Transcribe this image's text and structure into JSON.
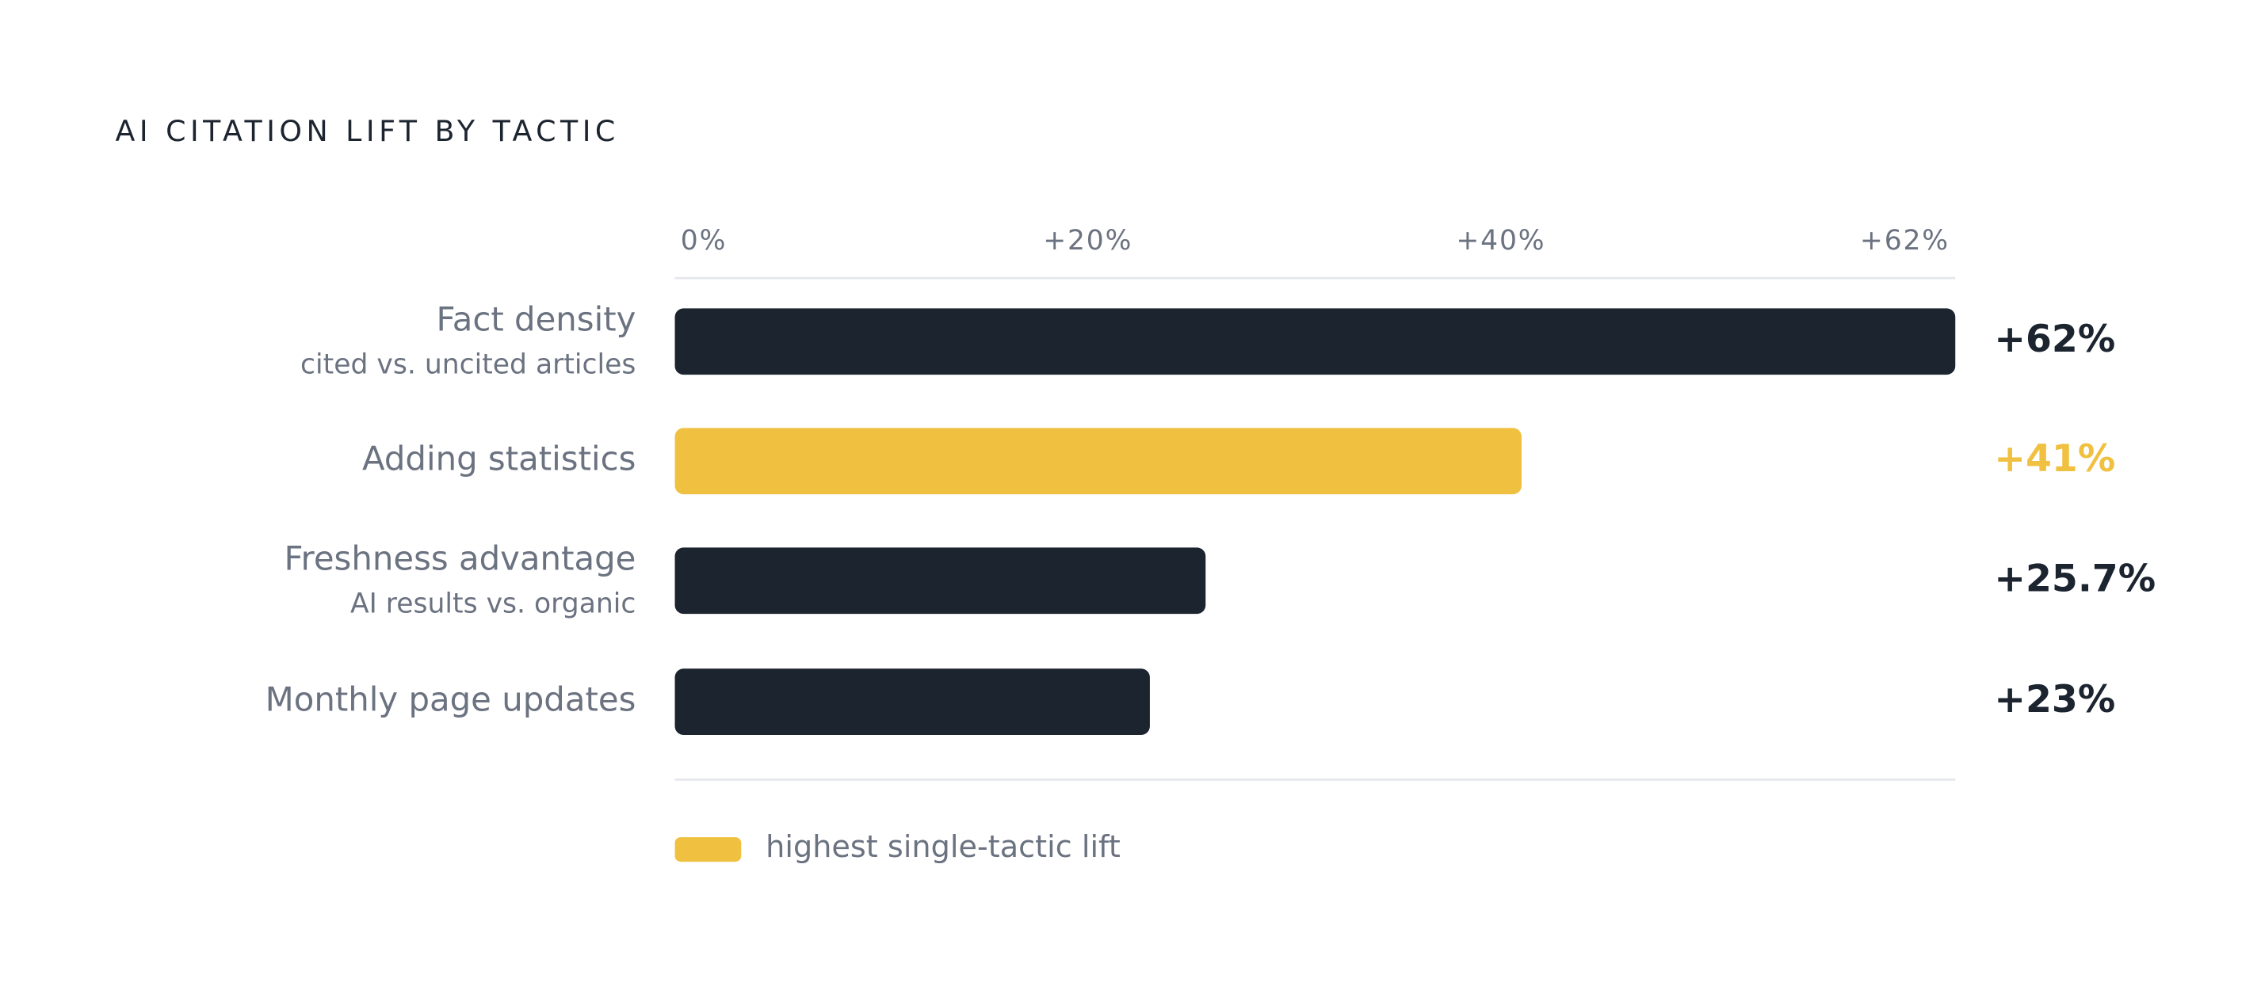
{
  "chart_data": {
    "type": "bar",
    "orientation": "horizontal",
    "title": "AI CITATION LIFT BY TACTIC",
    "categories": [
      "Fact density",
      "Adding statistics",
      "Freshness advantage",
      "Monthly page updates"
    ],
    "sublabels": [
      "cited vs. uncited articles",
      null,
      "AI results vs. organic",
      null
    ],
    "values": [
      62,
      41,
      25.7,
      23
    ],
    "value_labels": [
      "+62%",
      "+41%",
      "+25.7%",
      "+23%"
    ],
    "colors": [
      "#1c2430",
      "#f0c040",
      "#1c2430",
      "#1c2430"
    ],
    "xlim": [
      0,
      62
    ],
    "xticks": [
      {
        "value": 0,
        "label": "0%"
      },
      {
        "value": 20,
        "label": "+20%"
      },
      {
        "value": 40,
        "label": "+40%"
      },
      {
        "value": 62,
        "label": "+62%"
      }
    ],
    "legend": {
      "label": "highest single-tactic lift",
      "color": "#f0c040"
    }
  }
}
